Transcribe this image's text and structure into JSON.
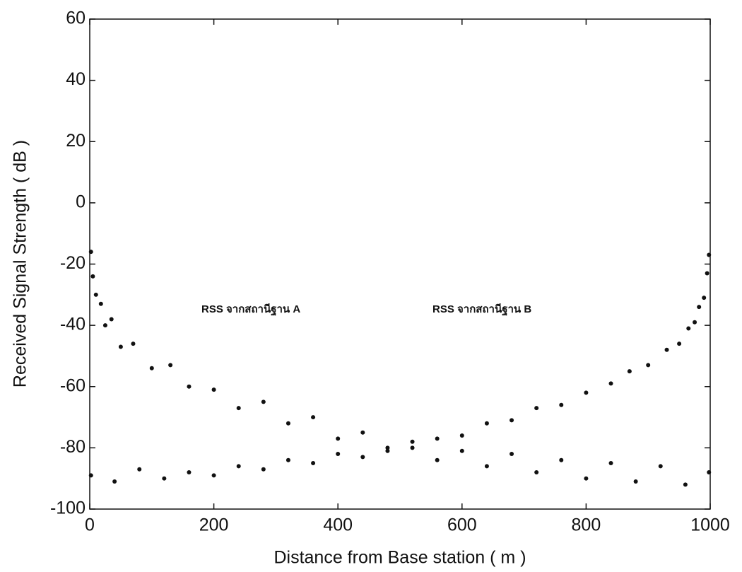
{
  "chart_data": {
    "type": "scatter",
    "x_label": "Distance from Base station ( m )",
    "y_label": "Received Signal Strength ( dB    )",
    "annotations": [
      "RSS จากสถานีฐาน A",
      "RSS จากสถานีฐาน B"
    ],
    "xlim": [
      0,
      1000
    ],
    "xticks": [
      0,
      200,
      400,
      600,
      800,
      1000
    ],
    "ylim": [
      -100,
      60
    ],
    "yticks": [
      -100,
      -80,
      -60,
      -40,
      -20,
      0,
      20,
      40,
      60
    ],
    "series": [
      {
        "color": "#111111",
        "x": [
          2,
          5,
          10,
          18,
          25,
          35,
          50,
          70,
          100,
          130,
          160,
          200,
          240,
          280,
          320,
          360,
          400,
          440,
          480,
          520,
          560,
          600,
          640,
          680,
          720,
          760,
          800,
          840,
          880,
          920,
          960,
          998
        ],
        "values": [
          -16,
          -24,
          -30,
          -33,
          -40,
          -38,
          -47,
          -46,
          -54,
          -53,
          -60,
          -61,
          -67,
          -65,
          -72,
          -70,
          -77,
          -75,
          -81,
          -78,
          -84,
          -81,
          -86,
          -82,
          -88,
          -84,
          -90,
          -85,
          -91,
          -86,
          -92,
          -88
        ]
      },
      {
        "color": "#111111",
        "x": [
          998,
          995,
          990,
          982,
          975,
          965,
          950,
          930,
          900,
          870,
          840,
          800,
          760,
          720,
          680,
          640,
          600,
          560,
          520,
          480,
          440,
          400,
          360,
          320,
          280,
          240,
          200,
          160,
          120,
          80,
          40,
          2
        ],
        "values": [
          -17,
          -23,
          -31,
          -34,
          -39,
          -41,
          -46,
          -48,
          -53,
          -55,
          -59,
          -62,
          -66,
          -67,
          -71,
          -72,
          -76,
          -77,
          -80,
          -80,
          -83,
          -82,
          -85,
          -84,
          -87,
          -86,
          -89,
          -88,
          -90,
          -87,
          -91,
          -89
        ]
      }
    ]
  }
}
